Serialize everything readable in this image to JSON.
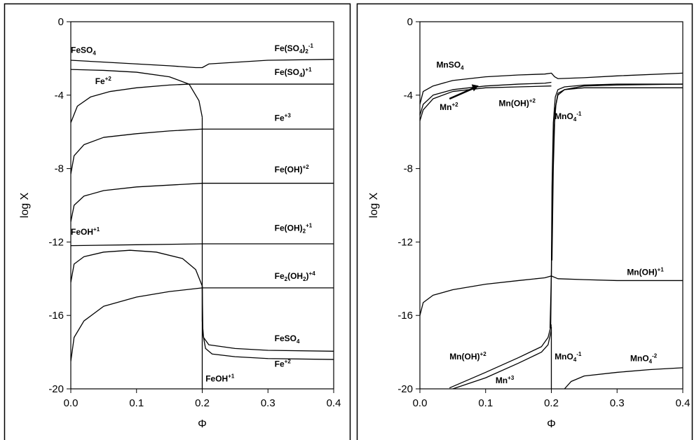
{
  "chart_data": [
    {
      "type": "line",
      "xlabel": "Φ",
      "ylabel": "log X",
      "xlim": [
        0.0,
        0.4
      ],
      "ylim": [
        -20,
        0
      ],
      "xticks": [
        "0.0",
        "0.1",
        "0.2",
        "0.3",
        "0.4"
      ],
      "yticks": [
        "0",
        "-4",
        "-8",
        "-12",
        "-16",
        "-20"
      ],
      "grid": false,
      "legend": "none",
      "labels": [
        {
          "text": "FeSO",
          "sub": "4",
          "sup": "",
          "x": 0.0,
          "y": -1.7
        },
        {
          "text": "Fe(SO",
          "sub": "4",
          "mid": ")",
          "sub2": "2",
          "sup": "-1",
          "x": 0.31,
          "y": -1.6
        },
        {
          "text": "Fe",
          "sub": "",
          "sup": "+2",
          "x": 0.037,
          "y": -3.4
        },
        {
          "text": "Fe(SO",
          "sub": "4",
          "mid": ")",
          "sup": "+1",
          "x": 0.31,
          "y": -2.9
        },
        {
          "text": "Fe",
          "sub": "",
          "sup": "+3",
          "x": 0.31,
          "y": -5.4
        },
        {
          "text": "Fe(OH)",
          "sub": "",
          "sup": "+2",
          "x": 0.31,
          "y": -8.2
        },
        {
          "text": "FeOH",
          "sub": "",
          "sup": "+1",
          "x": 0.0,
          "y": -11.6
        },
        {
          "text": "Fe(OH)",
          "sub": "2",
          "sup": "+1",
          "x": 0.31,
          "y": -11.4
        },
        {
          "text": "Fe",
          "sub": "2",
          "mid": "(OH",
          "sub2": "2",
          "mid2": ")",
          "sup": "+4",
          "x": 0.31,
          "y": -14.0
        },
        {
          "text": "FeSO",
          "sub": "4",
          "sup": "",
          "x": 0.31,
          "y": -17.4
        },
        {
          "text": "Fe",
          "sub": "",
          "sup": "+2",
          "x": 0.31,
          "y": -18.8
        },
        {
          "text": "FeOH",
          "sub": "",
          "sup": "+1",
          "x": 0.205,
          "y": -19.6
        }
      ],
      "series": [
        {
          "x": [
            0.0,
            0.05,
            0.1,
            0.15,
            0.19,
            0.2,
            0.21,
            0.3,
            0.4
          ],
          "y": [
            -2.1,
            -2.2,
            -2.3,
            -2.4,
            -2.5,
            -2.5,
            -2.3,
            -2.1,
            -2.05
          ]
        },
        {
          "x": [
            0.0,
            0.05,
            0.1,
            0.15,
            0.18,
            0.195,
            0.2
          ],
          "y": [
            -2.6,
            -2.65,
            -2.75,
            -3.0,
            -3.4,
            -4.3,
            -5.2
          ]
        },
        {
          "x": [
            0.0,
            0.01,
            0.03,
            0.06,
            0.1,
            0.15,
            0.18,
            0.195,
            0.2,
            0.25,
            0.3,
            0.4
          ],
          "y": [
            -5.5,
            -4.6,
            -4.1,
            -3.8,
            -3.6,
            -3.45,
            -3.4,
            -3.4,
            -3.4,
            -3.4,
            -3.4,
            -3.4
          ]
        },
        {
          "x": [
            0.0,
            0.005,
            0.02,
            0.05,
            0.1,
            0.15,
            0.2,
            0.3,
            0.4
          ],
          "y": [
            -8.3,
            -7.3,
            -6.7,
            -6.3,
            -6.1,
            -5.95,
            -5.85,
            -5.85,
            -5.85
          ]
        },
        {
          "x": [
            0.0,
            0.005,
            0.02,
            0.05,
            0.1,
            0.15,
            0.2,
            0.3,
            0.4
          ],
          "y": [
            -10.9,
            -10.0,
            -9.5,
            -9.2,
            -9.0,
            -8.9,
            -8.8,
            -8.8,
            -8.8
          ]
        },
        {
          "x": [
            0.0,
            0.1,
            0.2,
            0.3,
            0.4
          ],
          "y": [
            -12.2,
            -12.15,
            -12.1,
            -12.1,
            -12.1
          ]
        },
        {
          "x": [
            0.0,
            0.005,
            0.02,
            0.05,
            0.09,
            0.13,
            0.17,
            0.19,
            0.2
          ],
          "y": [
            -14.2,
            -13.2,
            -12.8,
            -12.55,
            -12.45,
            -12.55,
            -12.9,
            -13.5,
            -14.4
          ]
        },
        {
          "x": [
            0.0,
            0.005,
            0.02,
            0.05,
            0.1,
            0.15,
            0.2,
            0.3,
            0.4
          ],
          "y": [
            -18.5,
            -17.2,
            -16.3,
            -15.5,
            -15.0,
            -14.7,
            -14.5,
            -14.5,
            -14.5
          ]
        },
        {
          "x": [
            0.2,
            0.2,
            0.202,
            0.21,
            0.25,
            0.3,
            0.4
          ],
          "y": [
            -14.4,
            -16.3,
            -17.2,
            -17.6,
            -17.8,
            -17.9,
            -17.95
          ]
        },
        {
          "x": [
            0.2,
            0.201,
            0.205,
            0.215,
            0.25,
            0.3,
            0.4
          ],
          "y": [
            -14.4,
            -17.0,
            -17.8,
            -18.1,
            -18.25,
            -18.35,
            -18.4
          ]
        },
        {
          "x": [
            0.2,
            0.2
          ],
          "y": [
            -5.2,
            -20.0
          ]
        }
      ]
    },
    {
      "type": "line",
      "xlabel": "Φ",
      "ylabel": "log X",
      "xlim": [
        0.0,
        0.4
      ],
      "ylim": [
        -20,
        0
      ],
      "xticks": [
        "0.0",
        "0.1",
        "0.2",
        "0.3",
        "0.4"
      ],
      "yticks": [
        "0",
        "-4",
        "-8",
        "-12",
        "-16",
        "-20"
      ],
      "grid": false,
      "legend": "none",
      "labels": [
        {
          "text": "MnSO",
          "sub": "4",
          "sup": "",
          "x": 0.025,
          "y": -2.5
        },
        {
          "text": "Mn",
          "sub": "",
          "sup": "+2",
          "x": 0.03,
          "y": -4.8
        },
        {
          "text": "Mn(OH)",
          "sub": "",
          "sup": "+2",
          "x": 0.12,
          "y": -4.6
        },
        {
          "text": "MnO",
          "sub": "4",
          "sup": "-1",
          "x": 0.205,
          "y": -5.3
        },
        {
          "text": "Mn(OH)",
          "sub": "",
          "sup": "+1",
          "x": 0.315,
          "y": -13.8
        },
        {
          "text": "Mn(OH)",
          "sub": "",
          "sup": "+2",
          "x": 0.045,
          "y": -18.4
        },
        {
          "text": "MnO",
          "sub": "4",
          "sup": "-1",
          "x": 0.205,
          "y": -18.4
        },
        {
          "text": "MnO",
          "sub": "4",
          "sup": "-2",
          "x": 0.32,
          "y": -18.5
        },
        {
          "text": "Mn",
          "sub": "",
          "sup": "+3",
          "x": 0.115,
          "y": -19.7
        }
      ],
      "series": [
        {
          "x": [
            0.0,
            0.005,
            0.02,
            0.05,
            0.1,
            0.15,
            0.19,
            0.2,
            0.205,
            0.21,
            0.25,
            0.3,
            0.4
          ],
          "y": [
            -4.5,
            -3.8,
            -3.5,
            -3.2,
            -3.0,
            -2.9,
            -2.85,
            -2.8,
            -3.0,
            -3.1,
            -3.05,
            -2.95,
            -2.8
          ]
        },
        {
          "x": [
            0.0,
            0.005,
            0.02,
            0.05,
            0.1,
            0.15,
            0.19,
            0.2
          ],
          "y": [
            -5.1,
            -4.5,
            -4.0,
            -3.7,
            -3.5,
            -3.4,
            -3.35,
            -3.3
          ]
        },
        {
          "x": [
            0.0,
            0.005,
            0.02,
            0.05,
            0.1,
            0.15,
            0.2
          ],
          "y": [
            -5.4,
            -4.8,
            -4.2,
            -3.8,
            -3.6,
            -3.55,
            -3.5
          ]
        },
        {
          "x": [
            0.198,
            0.2,
            0.201,
            0.203,
            0.206,
            0.21,
            0.22,
            0.25,
            0.3,
            0.4
          ],
          "y": [
            -16.7,
            -13.8,
            -9.0,
            -5.5,
            -4.1,
            -3.7,
            -3.55,
            -3.45,
            -3.4,
            -3.4
          ]
        },
        {
          "x": [
            0.199,
            0.201,
            0.203,
            0.206,
            0.21,
            0.22,
            0.25,
            0.3,
            0.4
          ],
          "y": [
            -16.7,
            -11.0,
            -6.5,
            -4.7,
            -4.0,
            -3.7,
            -3.6,
            -3.6,
            -3.6
          ]
        },
        {
          "x": [
            0.201,
            0.203,
            0.205,
            0.207,
            0.21,
            0.22,
            0.25,
            0.3,
            0.4
          ],
          "y": [
            -13.0,
            -8.0,
            -5.5,
            -4.5,
            -3.9,
            -3.7,
            -3.5,
            -3.45,
            -3.4
          ]
        },
        {
          "x": [
            0.0,
            0.005,
            0.02,
            0.05,
            0.1,
            0.15,
            0.19,
            0.2,
            0.21,
            0.25,
            0.3,
            0.4
          ],
          "y": [
            -16.0,
            -15.3,
            -14.9,
            -14.6,
            -14.3,
            -14.1,
            -13.95,
            -13.85,
            -14.0,
            -14.05,
            -14.1,
            -14.1
          ]
        },
        {
          "x": [
            0.045,
            0.1,
            0.15,
            0.185,
            0.195,
            0.2
          ],
          "y": [
            -19.95,
            -19.1,
            -18.3,
            -17.7,
            -17.2,
            -16.5
          ]
        },
        {
          "x": [
            0.05,
            0.1,
            0.15,
            0.185,
            0.195,
            0.2
          ],
          "y": [
            -20.0,
            -19.4,
            -18.6,
            -18.0,
            -17.6,
            -16.8
          ]
        },
        {
          "x": [
            0.2,
            0.2
          ],
          "y": [
            -16.6,
            -20.0
          ]
        },
        {
          "x": [
            0.22,
            0.23,
            0.25,
            0.3,
            0.35,
            0.4
          ],
          "y": [
            -20.0,
            -19.6,
            -19.3,
            -19.1,
            -18.95,
            -18.85
          ]
        }
      ]
    }
  ]
}
